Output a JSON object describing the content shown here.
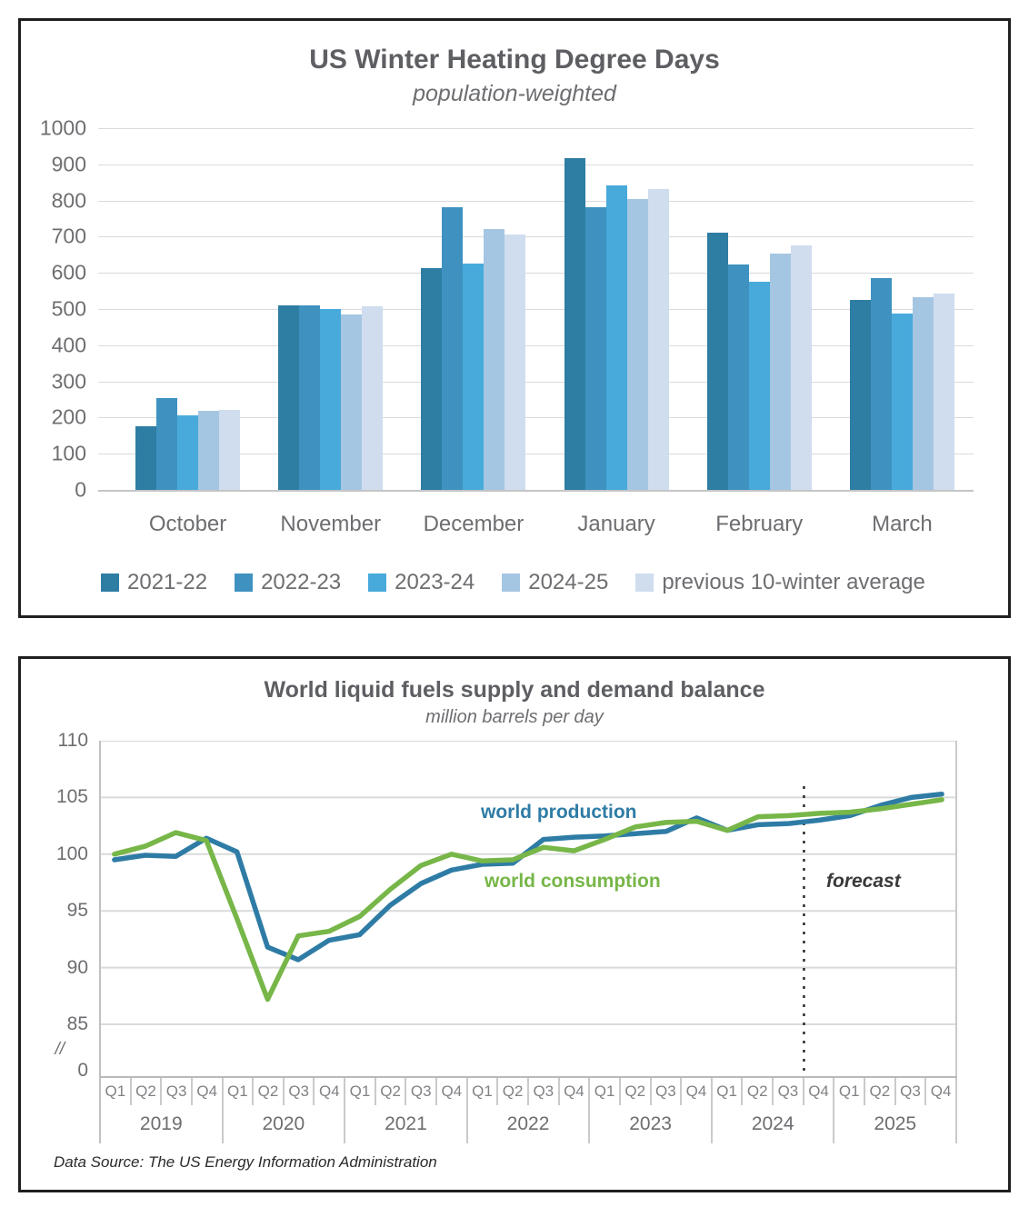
{
  "chart_data": [
    {
      "type": "bar",
      "title": "US Winter Heating Degree Days",
      "subtitle": "population-weighted",
      "categories": [
        "October",
        "November",
        "December",
        "January",
        "February",
        "March"
      ],
      "series": [
        {
          "name": "2021-22",
          "color": "#2e7da3",
          "values": [
            175,
            509,
            614,
            916,
            712,
            524
          ]
        },
        {
          "name": "2022-23",
          "color": "#3f92c0",
          "values": [
            255,
            510,
            782,
            782,
            622,
            585
          ]
        },
        {
          "name": "2023-24",
          "color": "#47aadb",
          "values": [
            205,
            501,
            625,
            843,
            576,
            487
          ]
        },
        {
          "name": "2024-25",
          "color": "#a5c6e2",
          "values": [
            218,
            484,
            722,
            805,
            654,
            532
          ]
        },
        {
          "name": "previous 10-winter average",
          "color": "#cfddee",
          "values": [
            222,
            508,
            707,
            831,
            675,
            542
          ]
        }
      ],
      "ylim": [
        0,
        1000
      ],
      "yticks": [
        1000,
        900,
        800,
        700,
        600,
        500,
        400,
        300,
        200,
        100,
        0
      ],
      "grid": true,
      "legend_position": "bottom"
    },
    {
      "type": "line",
      "title": "World liquid fuels supply and demand balance",
      "subtitle": "million barrels per day",
      "years": [
        "2019",
        "2020",
        "2021",
        "2022",
        "2023",
        "2024",
        "2025"
      ],
      "quarters": [
        "Q1",
        "Q2",
        "Q3",
        "Q4"
      ],
      "yticks": [
        110,
        105,
        100,
        95,
        90,
        85
      ],
      "axis_break_label": "//",
      "origin_label": "0",
      "series": [
        {
          "name": "world production",
          "color": "#2e7ca5",
          "values": [
            99.5,
            99.9,
            99.8,
            101.4,
            100.2,
            91.8,
            90.7,
            92.4,
            92.9,
            95.5,
            97.4,
            98.6,
            99.1,
            99.2,
            101.3,
            101.5,
            101.6,
            101.8,
            102.0,
            103.2,
            102.1,
            102.6,
            102.7,
            103.0,
            103.4,
            104.3,
            105.0,
            105.3
          ]
        },
        {
          "name": "world consumption",
          "color": "#77b648",
          "values": [
            100.0,
            100.7,
            101.9,
            101.2,
            94.3,
            87.2,
            92.8,
            93.2,
            94.5,
            96.9,
            99.0,
            100.0,
            99.4,
            99.5,
            100.6,
            100.3,
            101.3,
            102.4,
            102.8,
            102.9,
            102.1,
            103.3,
            103.4,
            103.6,
            103.7,
            104.0,
            104.4,
            104.8
          ]
        }
      ],
      "annotations": {
        "production_label": "world production",
        "consumption_label": "world consumption",
        "forecast_label": "forecast"
      },
      "forecast_boundary_index": 23,
      "forecast_line_color": "#2b2b2b",
      "source": "Data Source: The US Energy Information Administration"
    }
  ]
}
